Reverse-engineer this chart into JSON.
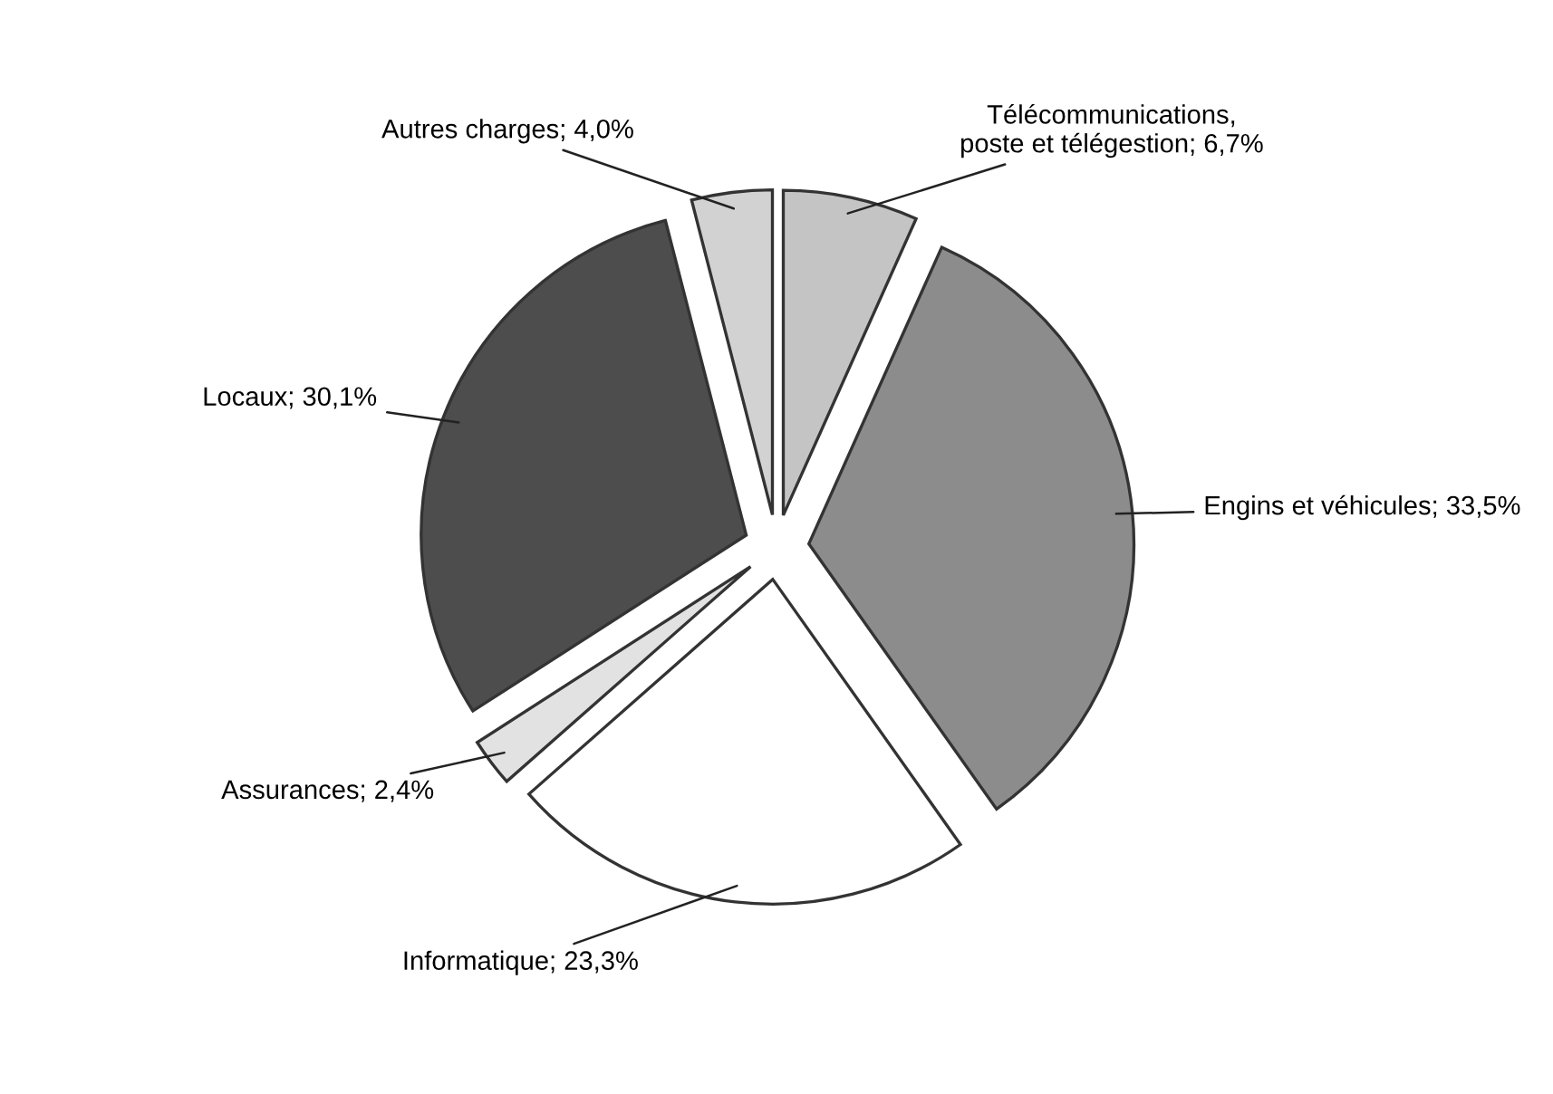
{
  "chart_data": {
    "type": "pie",
    "categories": [
      "Télécommunications,\nposte et télégestion",
      "Engins et véhicules",
      "Informatique",
      "Assurances",
      "Locaux",
      "Autres charges"
    ],
    "values": [
      6.7,
      33.5,
      23.3,
      2.4,
      30.1,
      4.0
    ],
    "value_labels": [
      "6,7%",
      "33,5%",
      "23,3%",
      "2,4%",
      "30,1%",
      "4,0%"
    ],
    "colors": [
      "#c4c4c4",
      "#8c8c8c",
      "#ffffff",
      "#e2e2e2",
      "#4d4d4d",
      "#d2d2d2"
    ],
    "legend": false
  }
}
